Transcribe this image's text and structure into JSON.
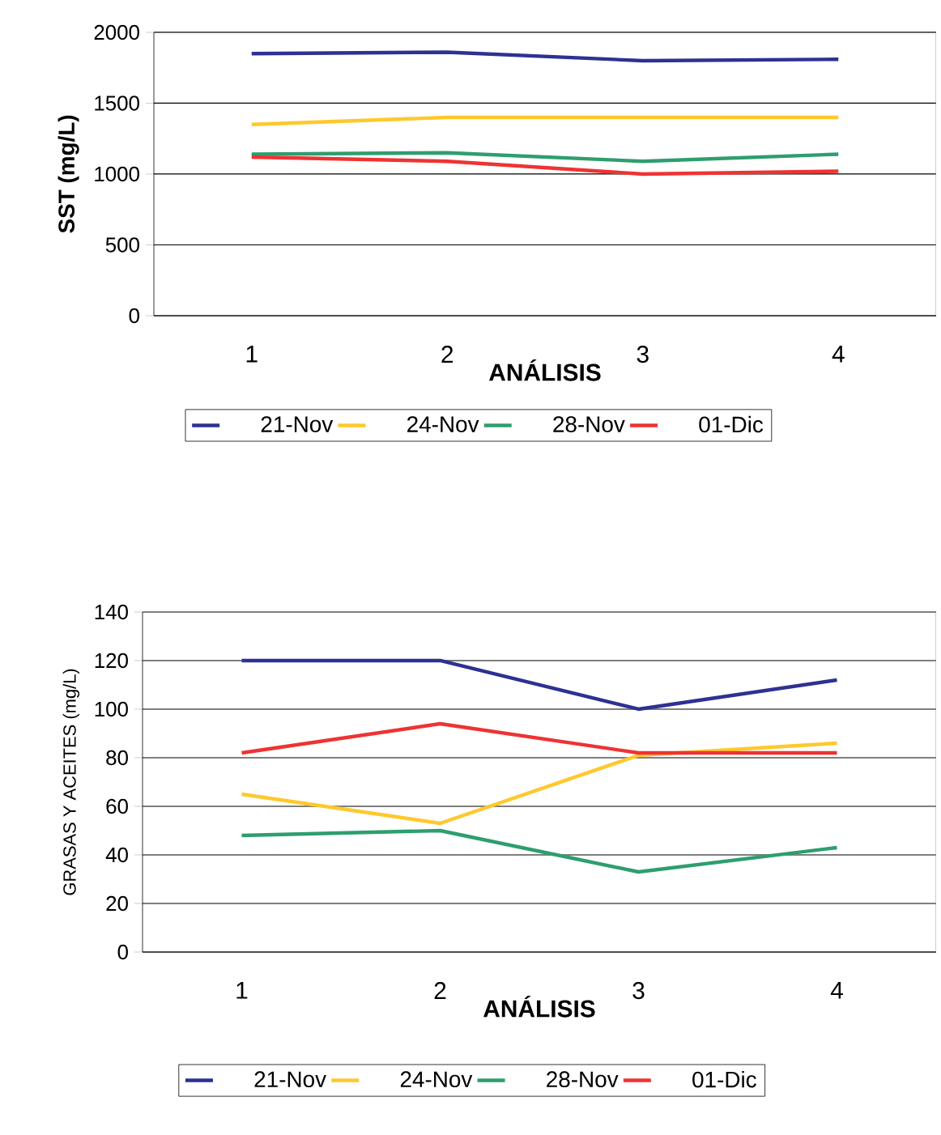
{
  "chart_data": [
    {
      "type": "line",
      "categories": [
        "1",
        "2",
        "3",
        "4"
      ],
      "xlabel": "ANÁLISIS",
      "ylabel": "SST (mg/L)",
      "ylim": [
        0,
        2000
      ],
      "yticks": [
        0,
        500,
        1000,
        1500,
        2000
      ],
      "grid": "y",
      "legend": "bottom",
      "series": [
        {
          "name": "21-Nov",
          "color": "#2e3192",
          "values": [
            1850,
            1860,
            1800,
            1810
          ]
        },
        {
          "name": "24-Nov",
          "color": "#ffc82c",
          "values": [
            1350,
            1400,
            1400,
            1400
          ]
        },
        {
          "name": "28-Nov",
          "color": "#2e9e6e",
          "values": [
            1140,
            1150,
            1090,
            1140
          ]
        },
        {
          "name": "01-Dic",
          "color": "#ee3333",
          "values": [
            1120,
            1090,
            1000,
            1020
          ]
        }
      ]
    },
    {
      "type": "line",
      "categories": [
        "1",
        "2",
        "3",
        "4"
      ],
      "xlabel": "ANÁLISIS",
      "ylabel": "GRASAS Y ACEITES (mg/L)",
      "ylim": [
        0,
        140
      ],
      "yticks": [
        0,
        20,
        40,
        60,
        80,
        100,
        120,
        140
      ],
      "grid": "y",
      "legend": "bottom",
      "series": [
        {
          "name": "21-Nov",
          "color": "#2e3192",
          "values": [
            120,
            120,
            100,
            112
          ]
        },
        {
          "name": "24-Nov",
          "color": "#ffc82c",
          "values": [
            65,
            53,
            81,
            86
          ]
        },
        {
          "name": "28-Nov",
          "color": "#2e9e6e",
          "values": [
            48,
            50,
            33,
            43
          ]
        },
        {
          "name": "01-Dic",
          "color": "#ee3333",
          "values": [
            82,
            94,
            82,
            82
          ]
        }
      ]
    }
  ]
}
